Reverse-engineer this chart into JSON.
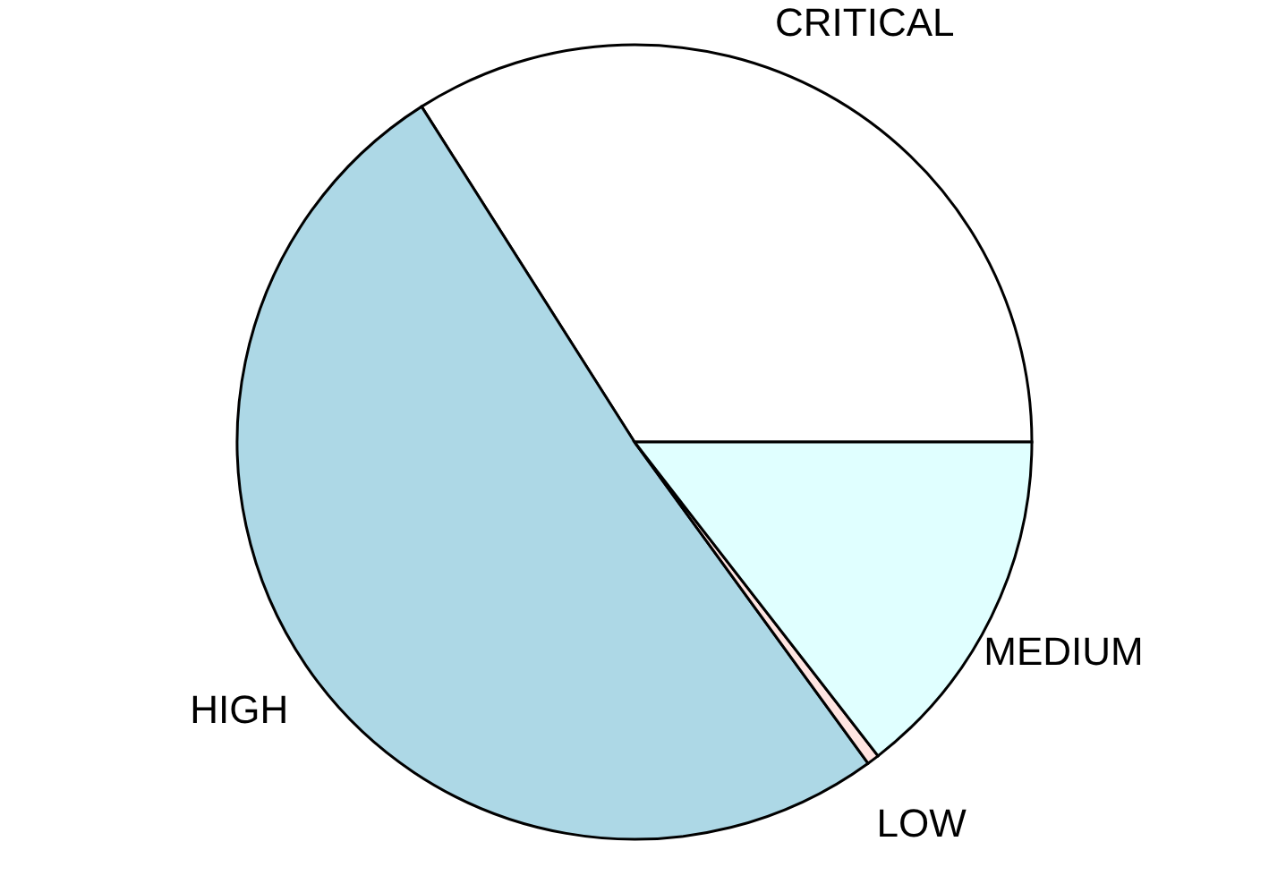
{
  "chart_data": {
    "type": "pie",
    "categories": [
      "CRITICAL",
      "HIGH",
      "LOW",
      "MEDIUM"
    ],
    "values": [
      34,
      51,
      0.5,
      14.5
    ],
    "colors": [
      "#ffffff",
      "#add8e6",
      "#ffe4e1",
      "#e0ffff"
    ],
    "legend": false
  }
}
